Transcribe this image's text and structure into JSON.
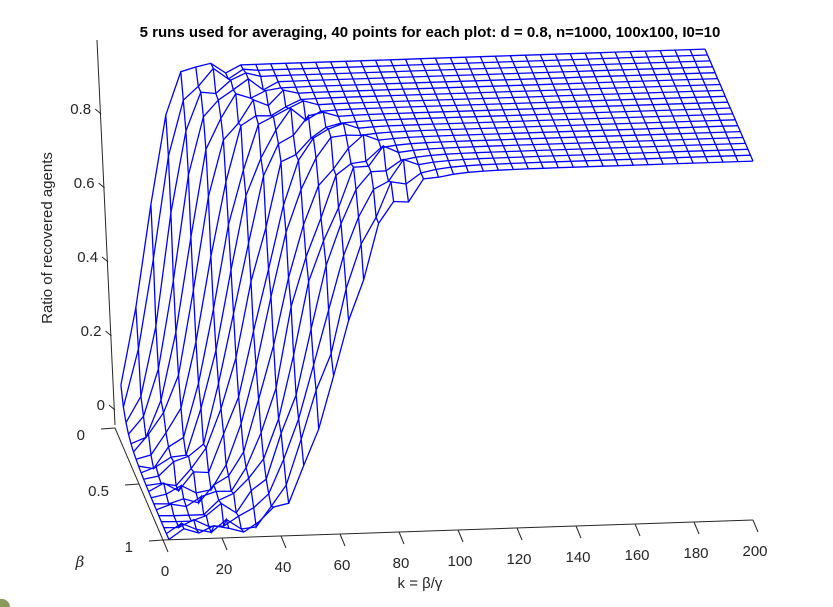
{
  "chart_data": {
    "type": "surface-mesh-3d",
    "title": "5 runs used for averaging, 40 points for each plot: d = 0.8, n=1000, 100x100, I0=10",
    "xlabel": "k = β/γ",
    "ylabel": "β",
    "zlabel": "Ratio of recovered agents",
    "x_ticks": [
      "0",
      "20",
      "40",
      "60",
      "80",
      "100",
      "120",
      "140",
      "160",
      "180",
      "200"
    ],
    "y_ticks": [
      "0",
      "0.5",
      "1"
    ],
    "z_ticks": [
      "0",
      "0.2",
      "0.4",
      "0.6",
      "0.8"
    ],
    "xlim": [
      0,
      200
    ],
    "ylim": [
      0,
      1
    ],
    "zlim": [
      0,
      0.97
    ],
    "mesh_color": "#0000ff",
    "grid": false,
    "n_k_points": 40,
    "n_beta_lines": 20,
    "surface_model": {
      "description_of_values": "Ratio of recovered agents plateaus near 0.97 for large k; the sigmoid transition shifts to larger k as beta increases",
      "plateau": 0.97,
      "transition_k_at_beta_0": 10,
      "transition_k_at_beta_1": 60
    }
  }
}
